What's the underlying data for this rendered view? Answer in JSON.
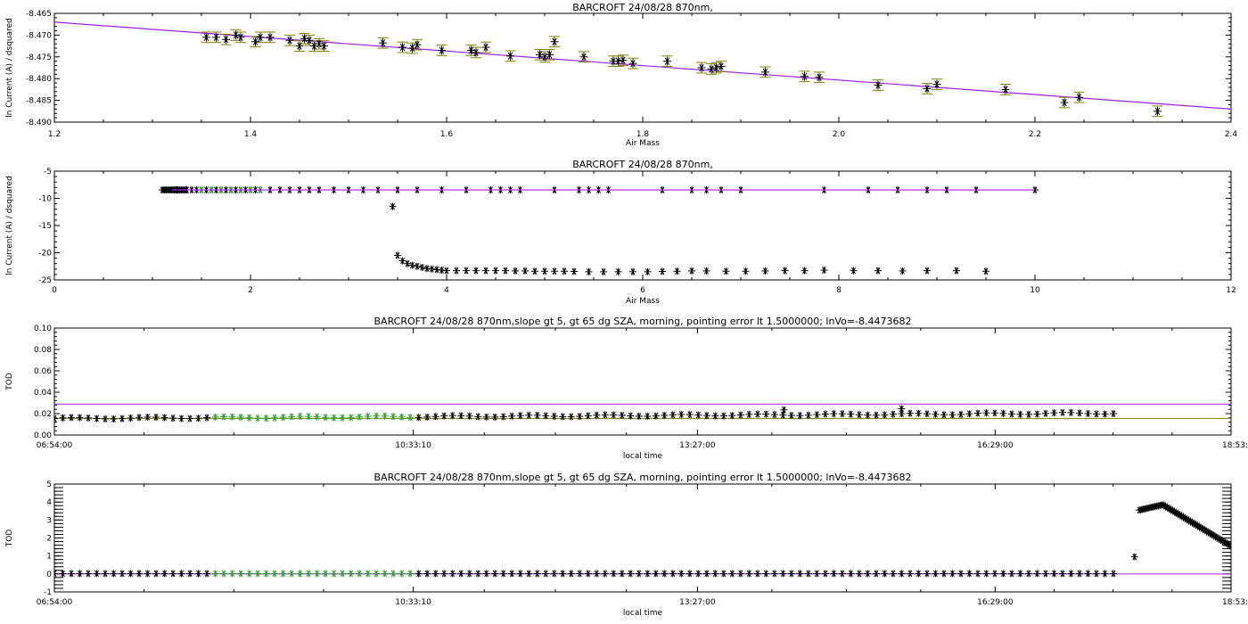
{
  "chart_data": [
    {
      "type": "scatter",
      "title": "BARCROFT 24/08/28 870nm,",
      "xlabel": "Air Mass",
      "ylabel": "ln Current (A) / dsquared",
      "xlim": [
        1.2,
        2.4
      ],
      "ylim": [
        -8.49,
        -8.465
      ],
      "x_ticks": [
        "1.2",
        "1.4",
        "1.6",
        "1.8",
        "2.0",
        "2.2",
        "2.4"
      ],
      "y_ticks": [
        "-8.465",
        "-8.470",
        "-8.475",
        "-8.480",
        "-8.485",
        "-8.490"
      ],
      "fit_line": {
        "x": [
          1.2,
          2.4
        ],
        "y": [
          -8.467,
          -8.487
        ],
        "color": "#a020f0"
      },
      "error_bar_color": "#808000",
      "error_bar_halfwidth": 0.0012,
      "points": [
        [
          1.355,
          -8.4705
        ],
        [
          1.365,
          -8.4705
        ],
        [
          1.375,
          -8.471
        ],
        [
          1.385,
          -8.47
        ],
        [
          1.39,
          -8.4705
        ],
        [
          1.405,
          -8.4715
        ],
        [
          1.41,
          -8.4705
        ],
        [
          1.42,
          -8.4705
        ],
        [
          1.44,
          -8.4712
        ],
        [
          1.45,
          -8.4725
        ],
        [
          1.455,
          -8.4708
        ],
        [
          1.46,
          -8.4712
        ],
        [
          1.465,
          -8.4725
        ],
        [
          1.47,
          -8.472
        ],
        [
          1.475,
          -8.4725
        ],
        [
          1.535,
          -8.4718
        ],
        [
          1.555,
          -8.4728
        ],
        [
          1.565,
          -8.473
        ],
        [
          1.57,
          -8.4722
        ],
        [
          1.595,
          -8.4735
        ],
        [
          1.625,
          -8.4735
        ],
        [
          1.63,
          -8.474
        ],
        [
          1.64,
          -8.4728
        ],
        [
          1.665,
          -8.4748
        ],
        [
          1.695,
          -8.4745
        ],
        [
          1.7,
          -8.475
        ],
        [
          1.705,
          -8.4745
        ],
        [
          1.71,
          -8.4715
        ],
        [
          1.74,
          -8.475
        ],
        [
          1.77,
          -8.476
        ],
        [
          1.775,
          -8.476
        ],
        [
          1.78,
          -8.4758
        ],
        [
          1.79,
          -8.4765
        ],
        [
          1.825,
          -8.476
        ],
        [
          1.86,
          -8.4775
        ],
        [
          1.87,
          -8.4778
        ],
        [
          1.875,
          -8.4775
        ],
        [
          1.88,
          -8.4772
        ],
        [
          1.925,
          -8.4785
        ],
        [
          1.965,
          -8.4795
        ],
        [
          1.98,
          -8.4797
        ],
        [
          2.04,
          -8.4815
        ],
        [
          2.09,
          -8.4823
        ],
        [
          2.1,
          -8.4813
        ],
        [
          2.17,
          -8.4825
        ],
        [
          2.23,
          -8.4855
        ],
        [
          2.245,
          -8.4843
        ],
        [
          2.325,
          -8.4875
        ]
      ]
    },
    {
      "type": "scatter",
      "title": "BARCROFT 24/08/28 870nm,",
      "xlabel": "Air Mass",
      "ylabel": "ln Current (A) / dsquared",
      "xlim": [
        0,
        12
      ],
      "ylim": [
        -25,
        -5
      ],
      "x_ticks": [
        "0",
        "2",
        "4",
        "6",
        "8",
        "10",
        "12"
      ],
      "y_ticks": [
        "-5",
        "-10",
        "-15",
        "-20",
        "-25"
      ],
      "fit_line": {
        "x": [
          1.2,
          10.0
        ],
        "y": [
          -8.45,
          -8.45
        ],
        "color": "#a020f0"
      },
      "upper_points_x": [
        1.2,
        1.25,
        1.3,
        1.35,
        1.4,
        1.45,
        1.5,
        1.55,
        1.6,
        1.65,
        1.7,
        1.75,
        1.8,
        1.85,
        1.9,
        1.95,
        2.0,
        2.05,
        2.1,
        2.2,
        2.3,
        2.4,
        2.5,
        2.6,
        2.7,
        2.85,
        3.0,
        3.15,
        3.3,
        3.5,
        3.7,
        3.95,
        4.2,
        4.45,
        4.55,
        4.65,
        4.75,
        5.1,
        5.35,
        5.45,
        5.55,
        5.65,
        6.2,
        6.5,
        6.65,
        6.8,
        7.0,
        7.85,
        8.3,
        8.6,
        8.9,
        9.1,
        9.4,
        10.0
      ],
      "upper_y": -8.45,
      "green_x": [
        1.5,
        1.6,
        1.7,
        1.8,
        1.9,
        2.0,
        2.1
      ],
      "outlier": [
        3.45,
        -11.5
      ],
      "lower_points": [
        [
          3.5,
          -20.5
        ],
        [
          3.55,
          -21.5
        ],
        [
          3.6,
          -22.0
        ],
        [
          3.65,
          -22.3
        ],
        [
          3.7,
          -22.5
        ],
        [
          3.75,
          -22.7
        ],
        [
          3.8,
          -22.9
        ],
        [
          3.85,
          -23.0
        ],
        [
          3.9,
          -23.1
        ],
        [
          3.95,
          -23.2
        ],
        [
          4.0,
          -23.3
        ],
        [
          4.1,
          -23.3
        ],
        [
          4.2,
          -23.3
        ],
        [
          4.3,
          -23.3
        ],
        [
          4.4,
          -23.3
        ],
        [
          4.5,
          -23.3
        ],
        [
          4.6,
          -23.3
        ],
        [
          4.7,
          -23.35
        ],
        [
          4.8,
          -23.35
        ],
        [
          4.9,
          -23.4
        ],
        [
          5.0,
          -23.4
        ],
        [
          5.1,
          -23.4
        ],
        [
          5.2,
          -23.4
        ],
        [
          5.3,
          -23.45
        ],
        [
          5.45,
          -23.5
        ],
        [
          5.6,
          -23.5
        ],
        [
          5.75,
          -23.5
        ],
        [
          5.9,
          -23.5
        ],
        [
          6.05,
          -23.5
        ],
        [
          6.2,
          -23.45
        ],
        [
          6.35,
          -23.4
        ],
        [
          6.5,
          -23.35
        ],
        [
          6.65,
          -23.35
        ],
        [
          6.85,
          -23.4
        ],
        [
          7.05,
          -23.4
        ],
        [
          7.25,
          -23.35
        ],
        [
          7.45,
          -23.3
        ],
        [
          7.65,
          -23.3
        ],
        [
          7.85,
          -23.2
        ],
        [
          8.15,
          -23.3
        ],
        [
          8.4,
          -23.3
        ],
        [
          8.65,
          -23.35
        ],
        [
          8.9,
          -23.3
        ],
        [
          9.2,
          -23.3
        ],
        [
          9.5,
          -23.4
        ]
      ]
    },
    {
      "type": "scatter",
      "title": "BARCROFT 24/08/28 870nm,slope gt 5, gt 65 dg SZA, morning, pointing error lt 1.5000000; lnVo=-8.4473682",
      "xlabel": "local time",
      "ylabel": "TOD",
      "xlim": [
        0,
        1
      ],
      "ylim": [
        0,
        0.1
      ],
      "x_ticks": [
        "06:54:00",
        "10:33:10",
        "13:27:00",
        "16:29:00",
        "18:53:00"
      ],
      "x_tick_pos": [
        0,
        0.305,
        0.5465,
        0.7995,
        1.0
      ],
      "y_ticks": [
        "0.00",
        "0.02",
        "0.04",
        "0.06",
        "0.08",
        "0.10"
      ],
      "hlines": [
        {
          "y": 0.029,
          "color": "#a020f0"
        },
        {
          "y": 0.0155,
          "color": "#808000"
        }
      ],
      "green_range": [
        0.13,
        0.305
      ],
      "point_range": [
        0.0,
        0.905
      ],
      "point_step": 0.0072,
      "baseline_start": 0.0155,
      "baseline_end": 0.0205,
      "spikes": [
        [
          0.62,
          0.0235
        ],
        [
          0.72,
          0.0245
        ]
      ]
    },
    {
      "type": "scatter",
      "title": "BARCROFT 24/08/28 870nm,slope gt 5, gt 65 dg SZA, morning, pointing error lt 1.5000000; lnVo=-8.4473682",
      "xlabel": "local time",
      "ylabel": "TOD",
      "xlim": [
        0,
        1
      ],
      "ylim": [
        -1,
        5
      ],
      "x_ticks": [
        "06:54:00",
        "10:33:10",
        "13:27:00",
        "16:29:00",
        "18:53:00"
      ],
      "x_tick_pos": [
        0,
        0.305,
        0.5465,
        0.7995,
        1.0
      ],
      "y_ticks": [
        "-1",
        "0",
        "1",
        "2",
        "3",
        "4",
        "5"
      ],
      "hlines": [
        {
          "y": 0.0,
          "color": "#a020f0"
        }
      ],
      "green_range": [
        0.13,
        0.305
      ],
      "point_range": [
        0.0,
        0.905
      ],
      "point_step": 0.0072,
      "point_y": 0.02,
      "outlier": [
        0.918,
        0.95
      ],
      "tail": {
        "x_start": 0.922,
        "x_end": 1.0,
        "y_start": 3.55,
        "peak_x": 0.942,
        "peak_y": 3.85,
        "y_end": 1.55
      }
    }
  ]
}
